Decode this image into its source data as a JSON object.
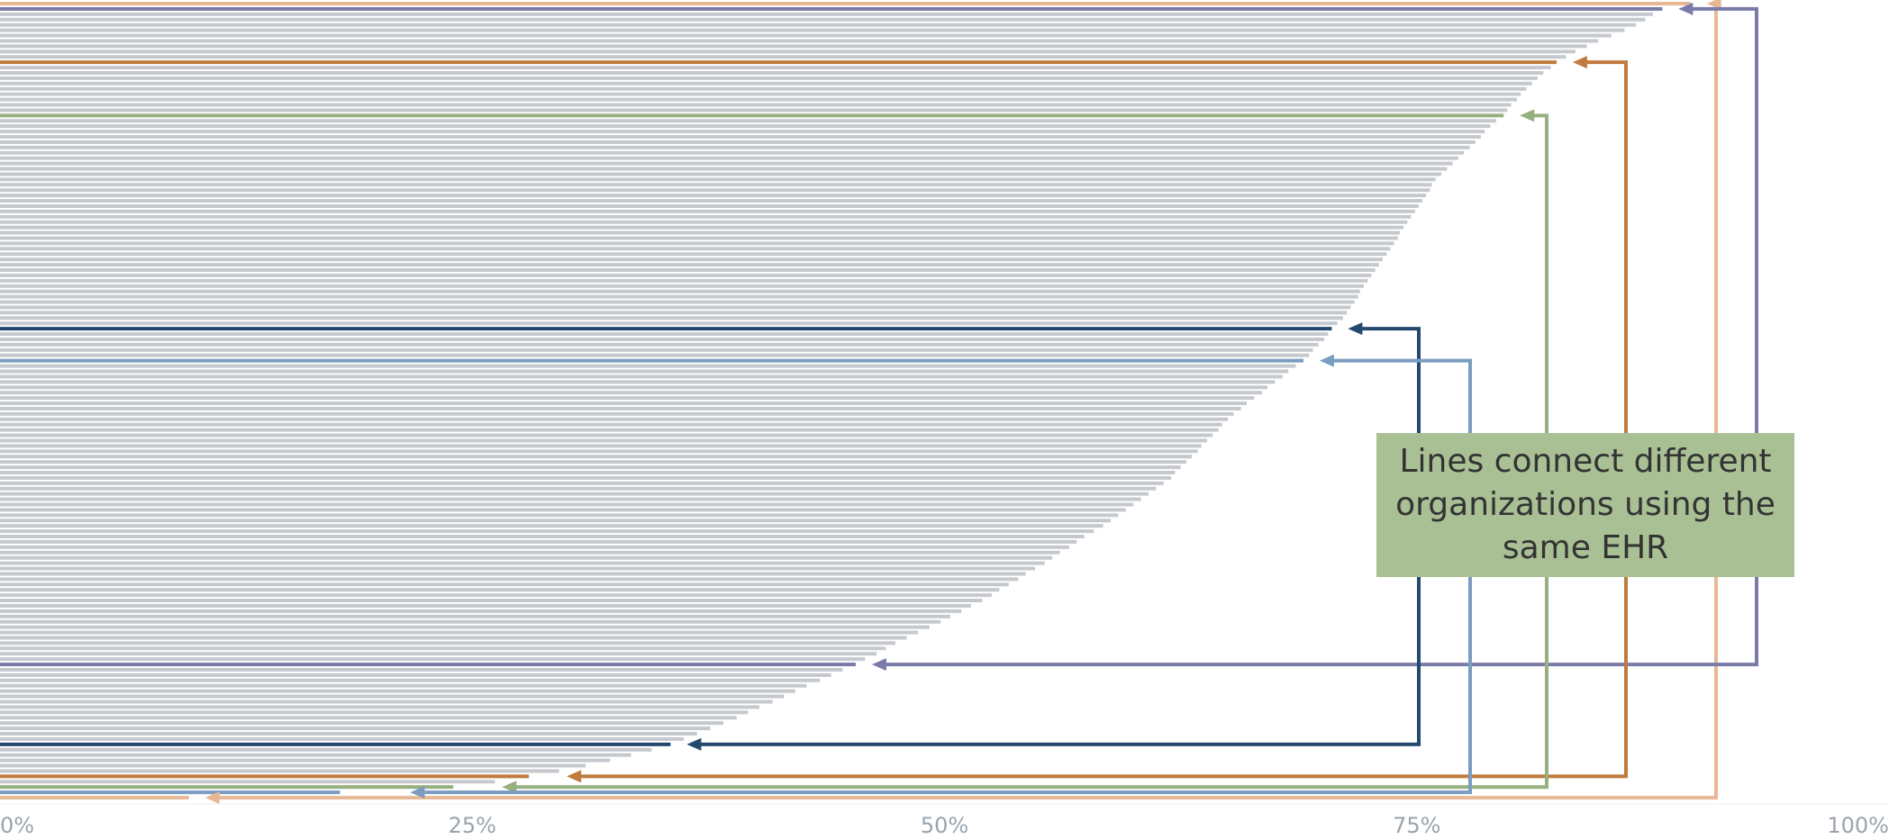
{
  "chart_data": {
    "type": "bar",
    "orientation": "horizontal",
    "annotation": "Lines connect different organizations using the same EHR",
    "xlim": [
      0,
      100
    ],
    "xticks": [
      {
        "value": 0,
        "label": "0%"
      },
      {
        "value": 25,
        "label": "25%"
      },
      {
        "value": 50,
        "label": "50%"
      },
      {
        "value": 75,
        "label": "75%"
      },
      {
        "value": 100,
        "label": "100%"
      }
    ],
    "grid": false,
    "values": [
      89.5,
      88,
      87.5,
      87.1,
      86.6,
      86.0,
      85.3,
      84.6,
      84.0,
      83.4,
      82.9,
      82.4,
      82.1,
      81.7,
      81.4,
      81.1,
      80.8,
      80.5,
      80.3,
      80.0,
      79.8,
      79.6,
      79.2,
      78.9,
      78.6,
      78.4,
      78.1,
      77.8,
      77.5,
      77.2,
      76.9,
      76.6,
      76.3,
      76.0,
      75.8,
      75.7,
      75.5,
      75.3,
      75.1,
      74.9,
      74.7,
      74.5,
      74.3,
      74.1,
      74.0,
      73.8,
      73.6,
      73.4,
      73.2,
      73.0,
      72.8,
      72.6,
      72.4,
      72.2,
      72.0,
      71.9,
      71.7,
      71.5,
      71.3,
      71.1,
      70.8,
      70.5,
      70.3,
      70.1,
      69.8,
      69.5,
      69.3,
      69.0,
      68.6,
      68.2,
      67.9,
      67.5,
      67.1,
      66.8,
      66.4,
      66.0,
      65.7,
      65.3,
      65.0,
      64.7,
      64.5,
      64.2,
      63.9,
      63.6,
      63.4,
      63.1,
      62.8,
      62.5,
      62.2,
      62.0,
      61.6,
      61.2,
      60.8,
      60.4,
      60.0,
      59.6,
      59.2,
      58.8,
      58.4,
      57.9,
      57.4,
      57.0,
      56.6,
      56.1,
      55.7,
      55.3,
      54.8,
      54.3,
      53.9,
      53.4,
      52.9,
      52.5,
      52.0,
      51.4,
      50.9,
      50.3,
      49.8,
      49.2,
      48.6,
      48.0,
      47.4,
      46.9,
      46.4,
      45.8,
      45.3,
      44.6,
      44.0,
      43.4,
      42.7,
      42.1,
      41.5,
      40.9,
      40.2,
      39.6,
      39.0,
      38.3,
      37.6,
      36.9,
      36.2,
      35.5,
      34.5,
      33.4,
      32.3,
      31.0,
      29.6,
      28.0,
      26.2,
      24.0,
      18.0,
      10.0
    ],
    "colors": [
      "#e8b896",
      "#7b7ba8",
      "#c5c9ce",
      "#c5c9ce",
      "#c5c9ce",
      "#c5c9ce",
      "#c5c9ce",
      "#c5c9ce",
      "#c5c9ce",
      "#c5c9ce",
      "#c5c9ce",
      "#c07a3e",
      "#c5c9ce",
      "#c5c9ce",
      "#c5c9ce",
      "#c5c9ce",
      "#c5c9ce",
      "#c5c9ce",
      "#c5c9ce",
      "#c5c9ce",
      "#c5c9ce",
      "#97b07f",
      "#c5c9ce",
      "#c5c9ce",
      "#c5c9ce",
      "#c5c9ce",
      "#c5c9ce",
      "#c5c9ce",
      "#c5c9ce",
      "#c5c9ce",
      "#c5c9ce",
      "#c5c9ce",
      "#c5c9ce",
      "#c5c9ce",
      "#c5c9ce",
      "#c5c9ce",
      "#c5c9ce",
      "#c5c9ce",
      "#c5c9ce",
      "#c5c9ce",
      "#c5c9ce",
      "#c5c9ce",
      "#c5c9ce",
      "#c5c9ce",
      "#c5c9ce",
      "#c5c9ce",
      "#c5c9ce",
      "#c5c9ce",
      "#c5c9ce",
      "#c5c9ce",
      "#c5c9ce",
      "#c5c9ce",
      "#c5c9ce",
      "#c5c9ce",
      "#c5c9ce",
      "#c5c9ce",
      "#c5c9ce",
      "#c5c9ce",
      "#c5c9ce",
      "#c5c9ce",
      "#c5c9ce",
      "#24496f",
      "#c5c9ce",
      "#c5c9ce",
      "#c5c9ce",
      "#c5c9ce",
      "#c5c9ce",
      "#7a9cc0",
      "#c5c9ce",
      "#c5c9ce",
      "#c5c9ce",
      "#c5c9ce",
      "#c5c9ce",
      "#c5c9ce",
      "#c5c9ce",
      "#c5c9ce",
      "#c5c9ce",
      "#c5c9ce",
      "#c5c9ce",
      "#c5c9ce",
      "#c5c9ce",
      "#c5c9ce",
      "#c5c9ce",
      "#c5c9ce",
      "#c5c9ce",
      "#c5c9ce",
      "#c5c9ce",
      "#c5c9ce",
      "#c5c9ce",
      "#c5c9ce",
      "#c5c9ce",
      "#c5c9ce",
      "#c5c9ce",
      "#c5c9ce",
      "#c5c9ce",
      "#c5c9ce",
      "#c5c9ce",
      "#c5c9ce",
      "#c5c9ce",
      "#c5c9ce",
      "#c5c9ce",
      "#c5c9ce",
      "#c5c9ce",
      "#c5c9ce",
      "#c5c9ce",
      "#c5c9ce",
      "#c5c9ce",
      "#c5c9ce",
      "#c5c9ce",
      "#c5c9ce",
      "#c5c9ce",
      "#c5c9ce",
      "#c5c9ce",
      "#c5c9ce",
      "#c5c9ce",
      "#c5c9ce",
      "#c5c9ce",
      "#c5c9ce",
      "#c5c9ce",
      "#c5c9ce",
      "#c5c9ce",
      "#c5c9ce",
      "#c5c9ce",
      "#c5c9ce",
      "#7b7ba8",
      "#c5c9ce",
      "#c5c9ce",
      "#c5c9ce",
      "#c5c9ce",
      "#c5c9ce",
      "#c5c9ce",
      "#c5c9ce",
      "#c5c9ce",
      "#c5c9ce",
      "#c5c9ce",
      "#c5c9ce",
      "#c5c9ce",
      "#c5c9ce",
      "#c5c9ce",
      "#24496f",
      "#c5c9ce",
      "#c5c9ce",
      "#c5c9ce",
      "#c5c9ce",
      "#c5c9ce",
      "#c07a3e",
      "#c5c9ce",
      "#97b07f",
      "#7a9cc0",
      "#e8b896"
    ]
  }
}
